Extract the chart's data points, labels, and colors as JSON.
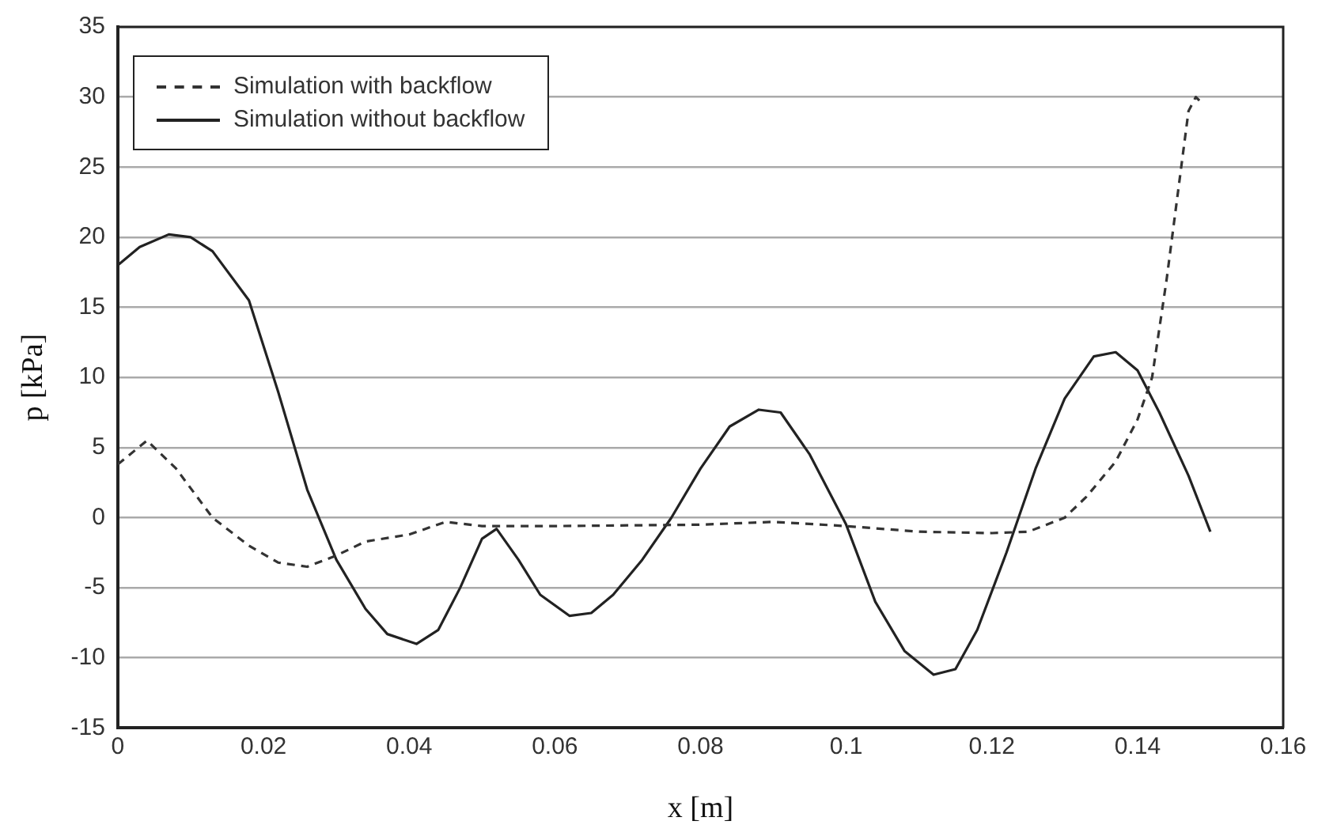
{
  "chart_data": {
    "type": "line",
    "xlabel": "x [m]",
    "ylabel": "p [kPa]",
    "xlim": [
      0,
      0.16
    ],
    "xticks": [
      0,
      0.02,
      0.04,
      0.06,
      0.08,
      0.1,
      0.12,
      0.14,
      0.16
    ],
    "ylim": [
      -15,
      35
    ],
    "yticks": [
      -15,
      -10,
      -5,
      0,
      5,
      10,
      15,
      20,
      25,
      30,
      35
    ],
    "grid": "y",
    "legend": "top left",
    "marker": "none",
    "series": [
      {
        "name": "Simulation with backflow",
        "color": "#333333",
        "line_style": "dashed",
        "x": [
          0,
          0.004,
          0.008,
          0.013,
          0.018,
          0.022,
          0.026,
          0.03,
          0.034,
          0.04,
          0.045,
          0.05,
          0.06,
          0.08,
          0.09,
          0.1,
          0.11,
          0.12,
          0.125,
          0.13,
          0.133,
          0.137,
          0.14,
          0.142,
          0.144,
          0.146,
          0.147,
          0.148,
          0.149
        ],
        "values": [
          3.8,
          5.5,
          3.5,
          0,
          -2,
          -3.2,
          -3.5,
          -2.7,
          -1.7,
          -1.2,
          -0.3,
          -0.6,
          -0.6,
          -0.5,
          -0.3,
          -0.6,
          -1,
          -1.1,
          -1,
          0,
          1.5,
          4,
          7,
          10,
          17,
          25,
          29,
          30,
          29.5
        ]
      },
      {
        "name": "Simulation without backflow",
        "color": "#222222",
        "line_style": "solid",
        "x": [
          0,
          0.003,
          0.007,
          0.01,
          0.013,
          0.018,
          0.022,
          0.026,
          0.03,
          0.034,
          0.037,
          0.041,
          0.044,
          0.047,
          0.05,
          0.052,
          0.055,
          0.058,
          0.062,
          0.065,
          0.068,
          0.072,
          0.076,
          0.08,
          0.084,
          0.088,
          0.091,
          0.095,
          0.1,
          0.104,
          0.108,
          0.112,
          0.115,
          0.118,
          0.122,
          0.126,
          0.13,
          0.134,
          0.137,
          0.14,
          0.143,
          0.147,
          0.15
        ],
        "values": [
          18,
          19.3,
          20.2,
          20,
          19,
          15.5,
          9,
          2,
          -3,
          -6.5,
          -8.3,
          -9,
          -8,
          -5,
          -1.5,
          -0.8,
          -3,
          -5.5,
          -7,
          -6.8,
          -5.5,
          -3,
          0,
          3.5,
          6.5,
          7.7,
          7.5,
          4.5,
          -0.5,
          -6,
          -9.5,
          -11.2,
          -10.8,
          -8,
          -2.5,
          3.5,
          8.5,
          11.5,
          11.8,
          10.5,
          7.5,
          3,
          -1
        ]
      }
    ]
  }
}
